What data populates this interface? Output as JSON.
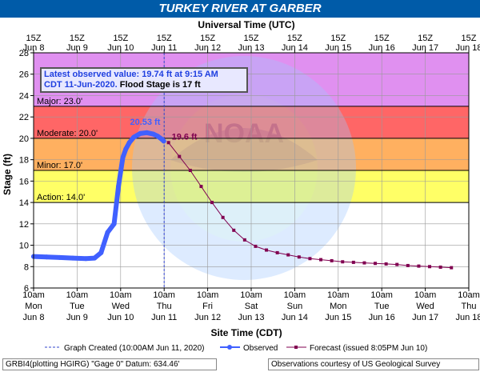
{
  "title": "TURKEY RIVER AT GARBER",
  "top_axis_title": "Universal Time (UTC)",
  "bottom_axis_title": "Site Time (CDT)",
  "y_axis_title": "Stage (ft)",
  "top_ticks": [
    [
      "15Z",
      "Jun 8"
    ],
    [
      "15Z",
      "Jun 9"
    ],
    [
      "15Z",
      "Jun 10"
    ],
    [
      "15Z",
      "Jun 11"
    ],
    [
      "15Z",
      "Jun 12"
    ],
    [
      "15Z",
      "Jun 13"
    ],
    [
      "15Z",
      "Jun 14"
    ],
    [
      "15Z",
      "Jun 15"
    ],
    [
      "15Z",
      "Jun 16"
    ],
    [
      "15Z",
      "Jun 17"
    ],
    [
      "15Z",
      "Jun 18"
    ]
  ],
  "bottom_ticks": [
    [
      "10am",
      "Mon",
      "Jun 8"
    ],
    [
      "10am",
      "Tue",
      "Jun 9"
    ],
    [
      "10am",
      "Wed",
      "Jun 10"
    ],
    [
      "10am",
      "Thu",
      "Jun 11"
    ],
    [
      "10am",
      "Fri",
      "Jun 12"
    ],
    [
      "10am",
      "Sat",
      "Jun 13"
    ],
    [
      "10am",
      "Sun",
      "Jun 14"
    ],
    [
      "10am",
      "Mon",
      "Jun 15"
    ],
    [
      "10am",
      "Tue",
      "Jun 16"
    ],
    [
      "10am",
      "Wed",
      "Jun 17"
    ],
    [
      "10am",
      "Thu",
      "Jun 18"
    ]
  ],
  "annotation_box": {
    "line1": "Latest observed value: 19.74 ft at 9:15 AM",
    "line2a": "CDT 11-Jun-2020.",
    "line2b": "Flood Stage is 17 ft"
  },
  "legend": {
    "graph_created": "Graph Created (10:00AM Jun 11, 2020)",
    "observed": "Observed",
    "forecast": "Forecast (issued 8:05PM Jun 10)"
  },
  "footer": {
    "left": "GRBI4(plotting HGIRG) \"Gage 0\" Datum: 634.46'",
    "right": "Observations courtesy of US Geological Survey"
  },
  "watermark": "NOAA",
  "colors": {
    "major": "#e090f0",
    "moderate": "#ff6666",
    "minor": "#ffb060",
    "action": "#ffff66",
    "observed": "#4060ff",
    "forecast": "#800050",
    "title_bg": "#005ba8"
  },
  "chart_data": {
    "type": "line",
    "x_unit": "days after 10am CDT Jun 8",
    "xlim": [
      0,
      10
    ],
    "ylim": [
      6,
      28
    ],
    "y_ticks": [
      6,
      8,
      10,
      12,
      14,
      16,
      18,
      20,
      22,
      24,
      26,
      28
    ],
    "grid": true,
    "flood_categories": [
      {
        "name": "Major",
        "label": "Major: 23.0'",
        "value": 23.0
      },
      {
        "name": "Moderate",
        "label": "Moderate: 20.0'",
        "value": 20.0
      },
      {
        "name": "Minor",
        "label": "Minor: 17.0'",
        "value": 17.0
      },
      {
        "name": "Action",
        "label": "Action: 14.0'",
        "value": 14.0
      }
    ],
    "graph_created_x": 3.0,
    "peak_label": "20.53 ft",
    "forecast_start_label": "19.6 ft",
    "series": [
      {
        "name": "Observed",
        "x": [
          0,
          0.3,
          0.6,
          0.9,
          1.2,
          1.4,
          1.55,
          1.7,
          1.85,
          1.95,
          2.05,
          2.12,
          2.2,
          2.3,
          2.45,
          2.6,
          2.75,
          2.85,
          2.95,
          2.99
        ],
        "y": [
          8.95,
          8.9,
          8.85,
          8.8,
          8.75,
          8.8,
          9.3,
          11.2,
          12.0,
          15.5,
          18.2,
          19.0,
          19.6,
          20.1,
          20.45,
          20.53,
          20.4,
          20.2,
          19.9,
          19.74
        ]
      },
      {
        "name": "Forecast",
        "x": [
          3.1,
          3.35,
          3.6,
          3.85,
          4.1,
          4.35,
          4.6,
          4.85,
          5.1,
          5.35,
          5.6,
          5.85,
          6.1,
          6.35,
          6.6,
          6.85,
          7.1,
          7.35,
          7.6,
          7.85,
          8.1,
          8.35,
          8.6,
          8.85,
          9.1,
          9.35,
          9.6
        ],
        "y": [
          19.6,
          18.3,
          17.0,
          15.5,
          14.0,
          12.6,
          11.4,
          10.5,
          9.9,
          9.55,
          9.3,
          9.1,
          8.9,
          8.75,
          8.65,
          8.55,
          8.45,
          8.4,
          8.35,
          8.3,
          8.25,
          8.2,
          8.1,
          8.05,
          8.0,
          7.95,
          7.9
        ]
      }
    ]
  }
}
